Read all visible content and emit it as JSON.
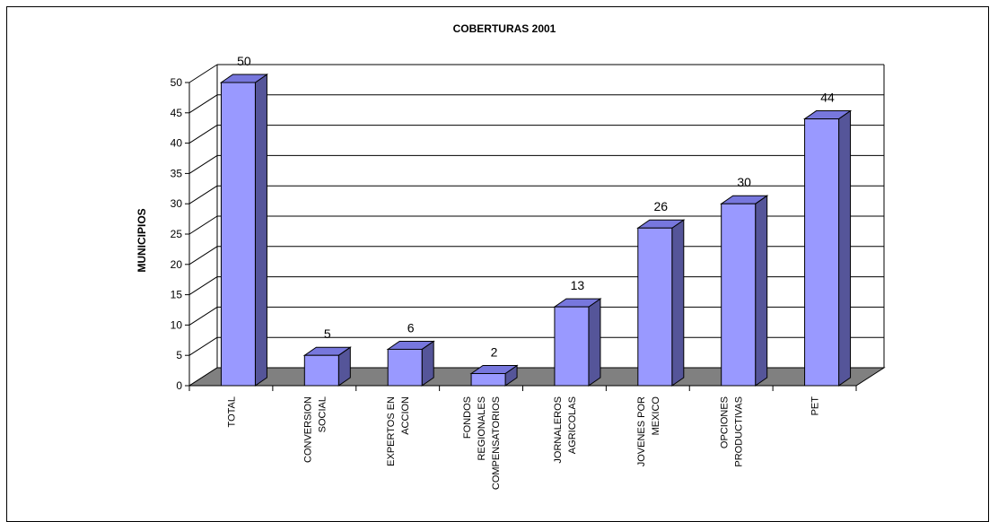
{
  "chart_data": {
    "type": "bar",
    "title": "COBERTURAS 2001",
    "ylabel": "MUNICIPIOS",
    "xlabel": "",
    "ylim": [
      0,
      50
    ],
    "yticks": [
      0,
      5,
      10,
      15,
      20,
      25,
      30,
      35,
      40,
      45,
      50
    ],
    "grid": true,
    "three_d": true,
    "bar_color": "#9999ff",
    "bar_side_color": "#555599",
    "bar_top_color": "#7777dd",
    "floor_color": "#808080",
    "categories": [
      [
        "TOTAL"
      ],
      [
        "CONVERSION",
        "SOCIAL"
      ],
      [
        "EXPERTOS EN",
        "ACCION"
      ],
      [
        "FONDOS",
        "REGIONALES",
        "COMPENSATORIOS"
      ],
      [
        "JORNALEROS",
        "AGRICOLAS"
      ],
      [
        "JOVENES POR",
        "MEXICO"
      ],
      [
        "OPCIONES",
        "PRODUCTIVAS"
      ],
      [
        "PET"
      ]
    ],
    "values": [
      50,
      5,
      6,
      2,
      13,
      26,
      30,
      44
    ]
  }
}
